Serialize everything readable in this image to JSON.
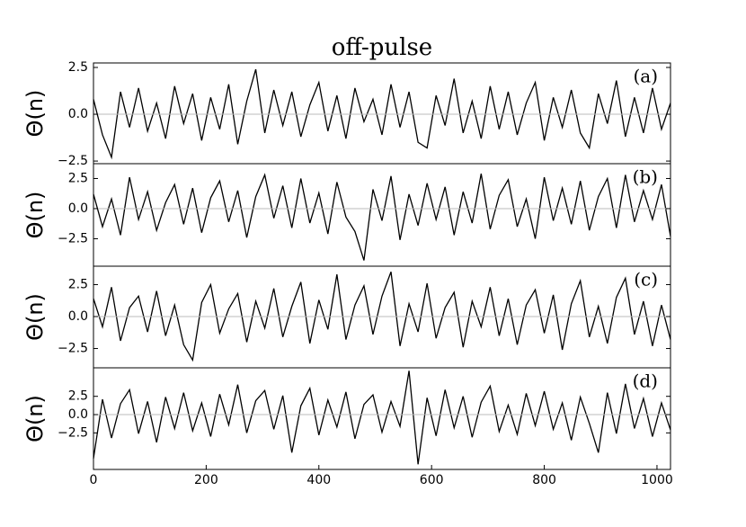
{
  "chart_data": [
    {
      "type": "line",
      "title": "off-pulse",
      "ylabel": "Θ(n)",
      "label": "(a)",
      "color": "#000000",
      "zero_line": true,
      "x": [
        0,
        16,
        32,
        48,
        64,
        80,
        96,
        112,
        128,
        144,
        160,
        176,
        192,
        208,
        224,
        240,
        256,
        272,
        288,
        304,
        320,
        336,
        352,
        368,
        384,
        400,
        416,
        432,
        448,
        464,
        480,
        496,
        512,
        528,
        544,
        560,
        576,
        592,
        608,
        624,
        640,
        656,
        672,
        688,
        704,
        720,
        736,
        752,
        768,
        784,
        800,
        816,
        832,
        848,
        864,
        880,
        896,
        912,
        928,
        944,
        960,
        976,
        992,
        1008,
        1024
      ],
      "values": [
        0.8,
        -1.1,
        -2.3,
        1.2,
        -0.7,
        1.4,
        -0.9,
        0.6,
        -1.3,
        1.5,
        -0.5,
        1.1,
        -1.4,
        0.9,
        -0.8,
        1.6,
        -1.6,
        0.7,
        2.4,
        -1.0,
        1.3,
        -0.6,
        1.2,
        -1.2,
        0.5,
        1.7,
        -0.9,
        1.0,
        -1.3,
        1.4,
        -0.4,
        0.8,
        -1.1,
        1.6,
        -0.7,
        1.2,
        -1.5,
        -1.8,
        1.0,
        -0.6,
        1.9,
        -1.0,
        0.7,
        -1.3,
        1.5,
        -0.8,
        1.2,
        -1.1,
        0.6,
        1.7,
        -1.4,
        0.9,
        -0.7,
        1.3,
        -1.0,
        -1.8,
        1.1,
        -0.5,
        1.8,
        -1.2,
        0.9,
        -1.0,
        1.4,
        -0.8,
        0.6
      ],
      "xlim": [
        0,
        1024
      ],
      "ylim": [
        -2.64,
        2.74
      ],
      "yticks": [
        2.5,
        {
          "value": 0,
          "label": "0.0"
        },
        {
          "value": -2.5,
          "label": "−2.5"
        }
      ]
    },
    {
      "type": "line",
      "ylabel": "Θ(n)",
      "label": "(b)",
      "color": "#000000",
      "zero_line": true,
      "x": [
        0,
        16,
        32,
        48,
        64,
        80,
        96,
        112,
        128,
        144,
        160,
        176,
        192,
        208,
        224,
        240,
        256,
        272,
        288,
        304,
        320,
        336,
        352,
        368,
        384,
        400,
        416,
        432,
        448,
        464,
        480,
        496,
        512,
        528,
        544,
        560,
        576,
        592,
        608,
        624,
        640,
        656,
        672,
        688,
        704,
        720,
        736,
        752,
        768,
        784,
        800,
        816,
        832,
        848,
        864,
        880,
        896,
        912,
        928,
        944,
        960,
        976,
        992,
        1008,
        1024
      ],
      "values": [
        1.2,
        -1.5,
        0.8,
        -2.2,
        2.6,
        -0.9,
        1.4,
        -1.8,
        0.5,
        2.0,
        -1.3,
        1.7,
        -2.0,
        0.9,
        2.3,
        -1.1,
        1.5,
        -2.4,
        1.0,
        2.8,
        -0.8,
        1.9,
        -1.6,
        2.5,
        -1.2,
        1.3,
        -2.1,
        2.2,
        -0.7,
        -1.9,
        -4.3,
        1.6,
        -1.0,
        2.7,
        -2.6,
        1.2,
        -1.4,
        2.1,
        -0.9,
        1.8,
        -2.2,
        1.4,
        -1.2,
        2.9,
        -1.7,
        1.1,
        2.4,
        -1.5,
        0.8,
        -2.5,
        2.6,
        -1.0,
        1.7,
        -1.3,
        2.3,
        -1.8,
        1.0,
        2.5,
        -1.6,
        2.8,
        -1.1,
        1.5,
        -0.9,
        2.0,
        -2.3
      ],
      "xlim": [
        0,
        1024
      ],
      "ylim": [
        -4.78,
        3.73
      ],
      "yticks": [
        2.5,
        {
          "value": 0,
          "label": "0.0"
        },
        {
          "value": -2.5,
          "label": "−2.5"
        }
      ]
    },
    {
      "type": "line",
      "ylabel": "Θ(n)",
      "label": "(c)",
      "color": "#000000",
      "zero_line": true,
      "x": [
        0,
        16,
        32,
        48,
        64,
        80,
        96,
        112,
        128,
        144,
        160,
        176,
        192,
        208,
        224,
        240,
        256,
        272,
        288,
        304,
        320,
        336,
        352,
        368,
        384,
        400,
        416,
        432,
        448,
        464,
        480,
        496,
        512,
        528,
        544,
        560,
        576,
        592,
        608,
        624,
        640,
        656,
        672,
        688,
        704,
        720,
        736,
        752,
        768,
        784,
        800,
        816,
        832,
        848,
        864,
        880,
        896,
        912,
        928,
        944,
        960,
        976,
        992,
        1008,
        1024
      ],
      "values": [
        1.4,
        -0.8,
        2.3,
        -1.9,
        0.7,
        1.6,
        -1.2,
        2.0,
        -1.5,
        0.9,
        -2.2,
        -3.4,
        1.1,
        2.5,
        -1.3,
        0.6,
        1.8,
        -2.0,
        1.2,
        -0.9,
        2.2,
        -1.6,
        0.8,
        2.7,
        -2.1,
        1.3,
        -1.0,
        3.3,
        -1.8,
        0.9,
        2.4,
        -1.4,
        1.6,
        3.5,
        -2.3,
        1.0,
        -1.2,
        2.6,
        -1.7,
        0.7,
        1.9,
        -2.4,
        1.2,
        -0.8,
        2.3,
        -1.5,
        1.4,
        -2.2,
        0.9,
        2.1,
        -1.3,
        1.7,
        -2.6,
        1.0,
        2.8,
        -1.6,
        0.8,
        -2.1,
        1.5,
        3.0,
        -1.4,
        1.2,
        -2.3,
        0.9,
        -1.8
      ],
      "xlim": [
        0,
        1024
      ],
      "ylim": [
        -4.01,
        3.94
      ],
      "yticks": [
        2.5,
        {
          "value": 0,
          "label": "0.0"
        },
        {
          "value": -2.5,
          "label": "−2.5"
        }
      ]
    },
    {
      "type": "line",
      "ylabel": "Θ(n)",
      "label": "(d)",
      "color": "#000000",
      "zero_line": true,
      "x": [
        0,
        16,
        32,
        48,
        64,
        80,
        96,
        112,
        128,
        144,
        160,
        176,
        192,
        208,
        224,
        240,
        256,
        272,
        288,
        304,
        320,
        336,
        352,
        368,
        384,
        400,
        416,
        432,
        448,
        464,
        480,
        496,
        512,
        528,
        544,
        560,
        576,
        592,
        608,
        624,
        640,
        656,
        672,
        688,
        704,
        720,
        736,
        752,
        768,
        784,
        800,
        816,
        832,
        848,
        864,
        880,
        896,
        912,
        928,
        944,
        960,
        976,
        992,
        1008,
        1024
      ],
      "values": [
        -6.0,
        2.1,
        -3.2,
        1.5,
        3.4,
        -2.6,
        1.8,
        -3.8,
        2.4,
        -1.9,
        3.0,
        -2.2,
        1.6,
        -3.0,
        2.8,
        -1.4,
        4.1,
        -2.5,
        1.9,
        3.3,
        -2.0,
        2.6,
        -5.2,
        1.2,
        3.6,
        -2.8,
        2.0,
        -1.7,
        3.1,
        -3.3,
        1.4,
        2.7,
        -2.4,
        1.8,
        -1.6,
        6.0,
        -6.8,
        2.3,
        -2.9,
        3.4,
        -1.8,
        2.5,
        -3.1,
        1.7,
        3.9,
        -2.3,
        1.3,
        -2.7,
        2.9,
        -1.5,
        3.2,
        -2.0,
        1.6,
        -3.5,
        2.4,
        -1.2,
        -5.2,
        3.0,
        -2.6,
        4.2,
        -1.9,
        2.2,
        -3.0,
        1.6,
        -2.1
      ],
      "xlim": [
        0,
        1024
      ],
      "ylim": [
        -7.5,
        6.4
      ],
      "yticks": [
        2.5,
        {
          "value": 0,
          "label": "0.0"
        },
        {
          "value": -2.5,
          "label": "−2.5"
        }
      ],
      "xticks": [
        0,
        200,
        400,
        600,
        800,
        1000
      ]
    }
  ]
}
